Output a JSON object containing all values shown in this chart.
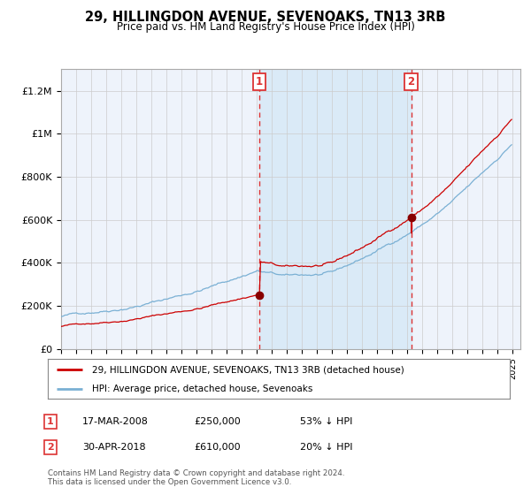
{
  "title": "29, HILLINGDON AVENUE, SEVENOAKS, TN13 3RB",
  "subtitle": "Price paid vs. HM Land Registry's House Price Index (HPI)",
  "background_color": "#ffffff",
  "plot_bg_color": "#eef3fb",
  "grid_color": "#cccccc",
  "hpi_color": "#7ab0d4",
  "price_color": "#cc0000",
  "vline_color": "#dd3333",
  "span_color": "#daeaf7",
  "ylim": [
    0,
    1300000
  ],
  "legend_entry1": "29, HILLINGDON AVENUE, SEVENOAKS, TN13 3RB (detached house)",
  "legend_entry2": "HPI: Average price, detached house, Sevenoaks",
  "annotation1_date": "17-MAR-2008",
  "annotation1_price": "£250,000",
  "annotation1_pct": "53% ↓ HPI",
  "annotation2_date": "30-APR-2018",
  "annotation2_price": "£610,000",
  "annotation2_pct": "20% ↓ HPI",
  "footer": "Contains HM Land Registry data © Crown copyright and database right 2024.\nThis data is licensed under the Open Government Licence v3.0.",
  "yticks": [
    0,
    200000,
    400000,
    600000,
    800000,
    1000000,
    1200000
  ],
  "ytick_labels": [
    "£0",
    "£200K",
    "£400K",
    "£600K",
    "£800K",
    "£1M",
    "£1.2M"
  ]
}
